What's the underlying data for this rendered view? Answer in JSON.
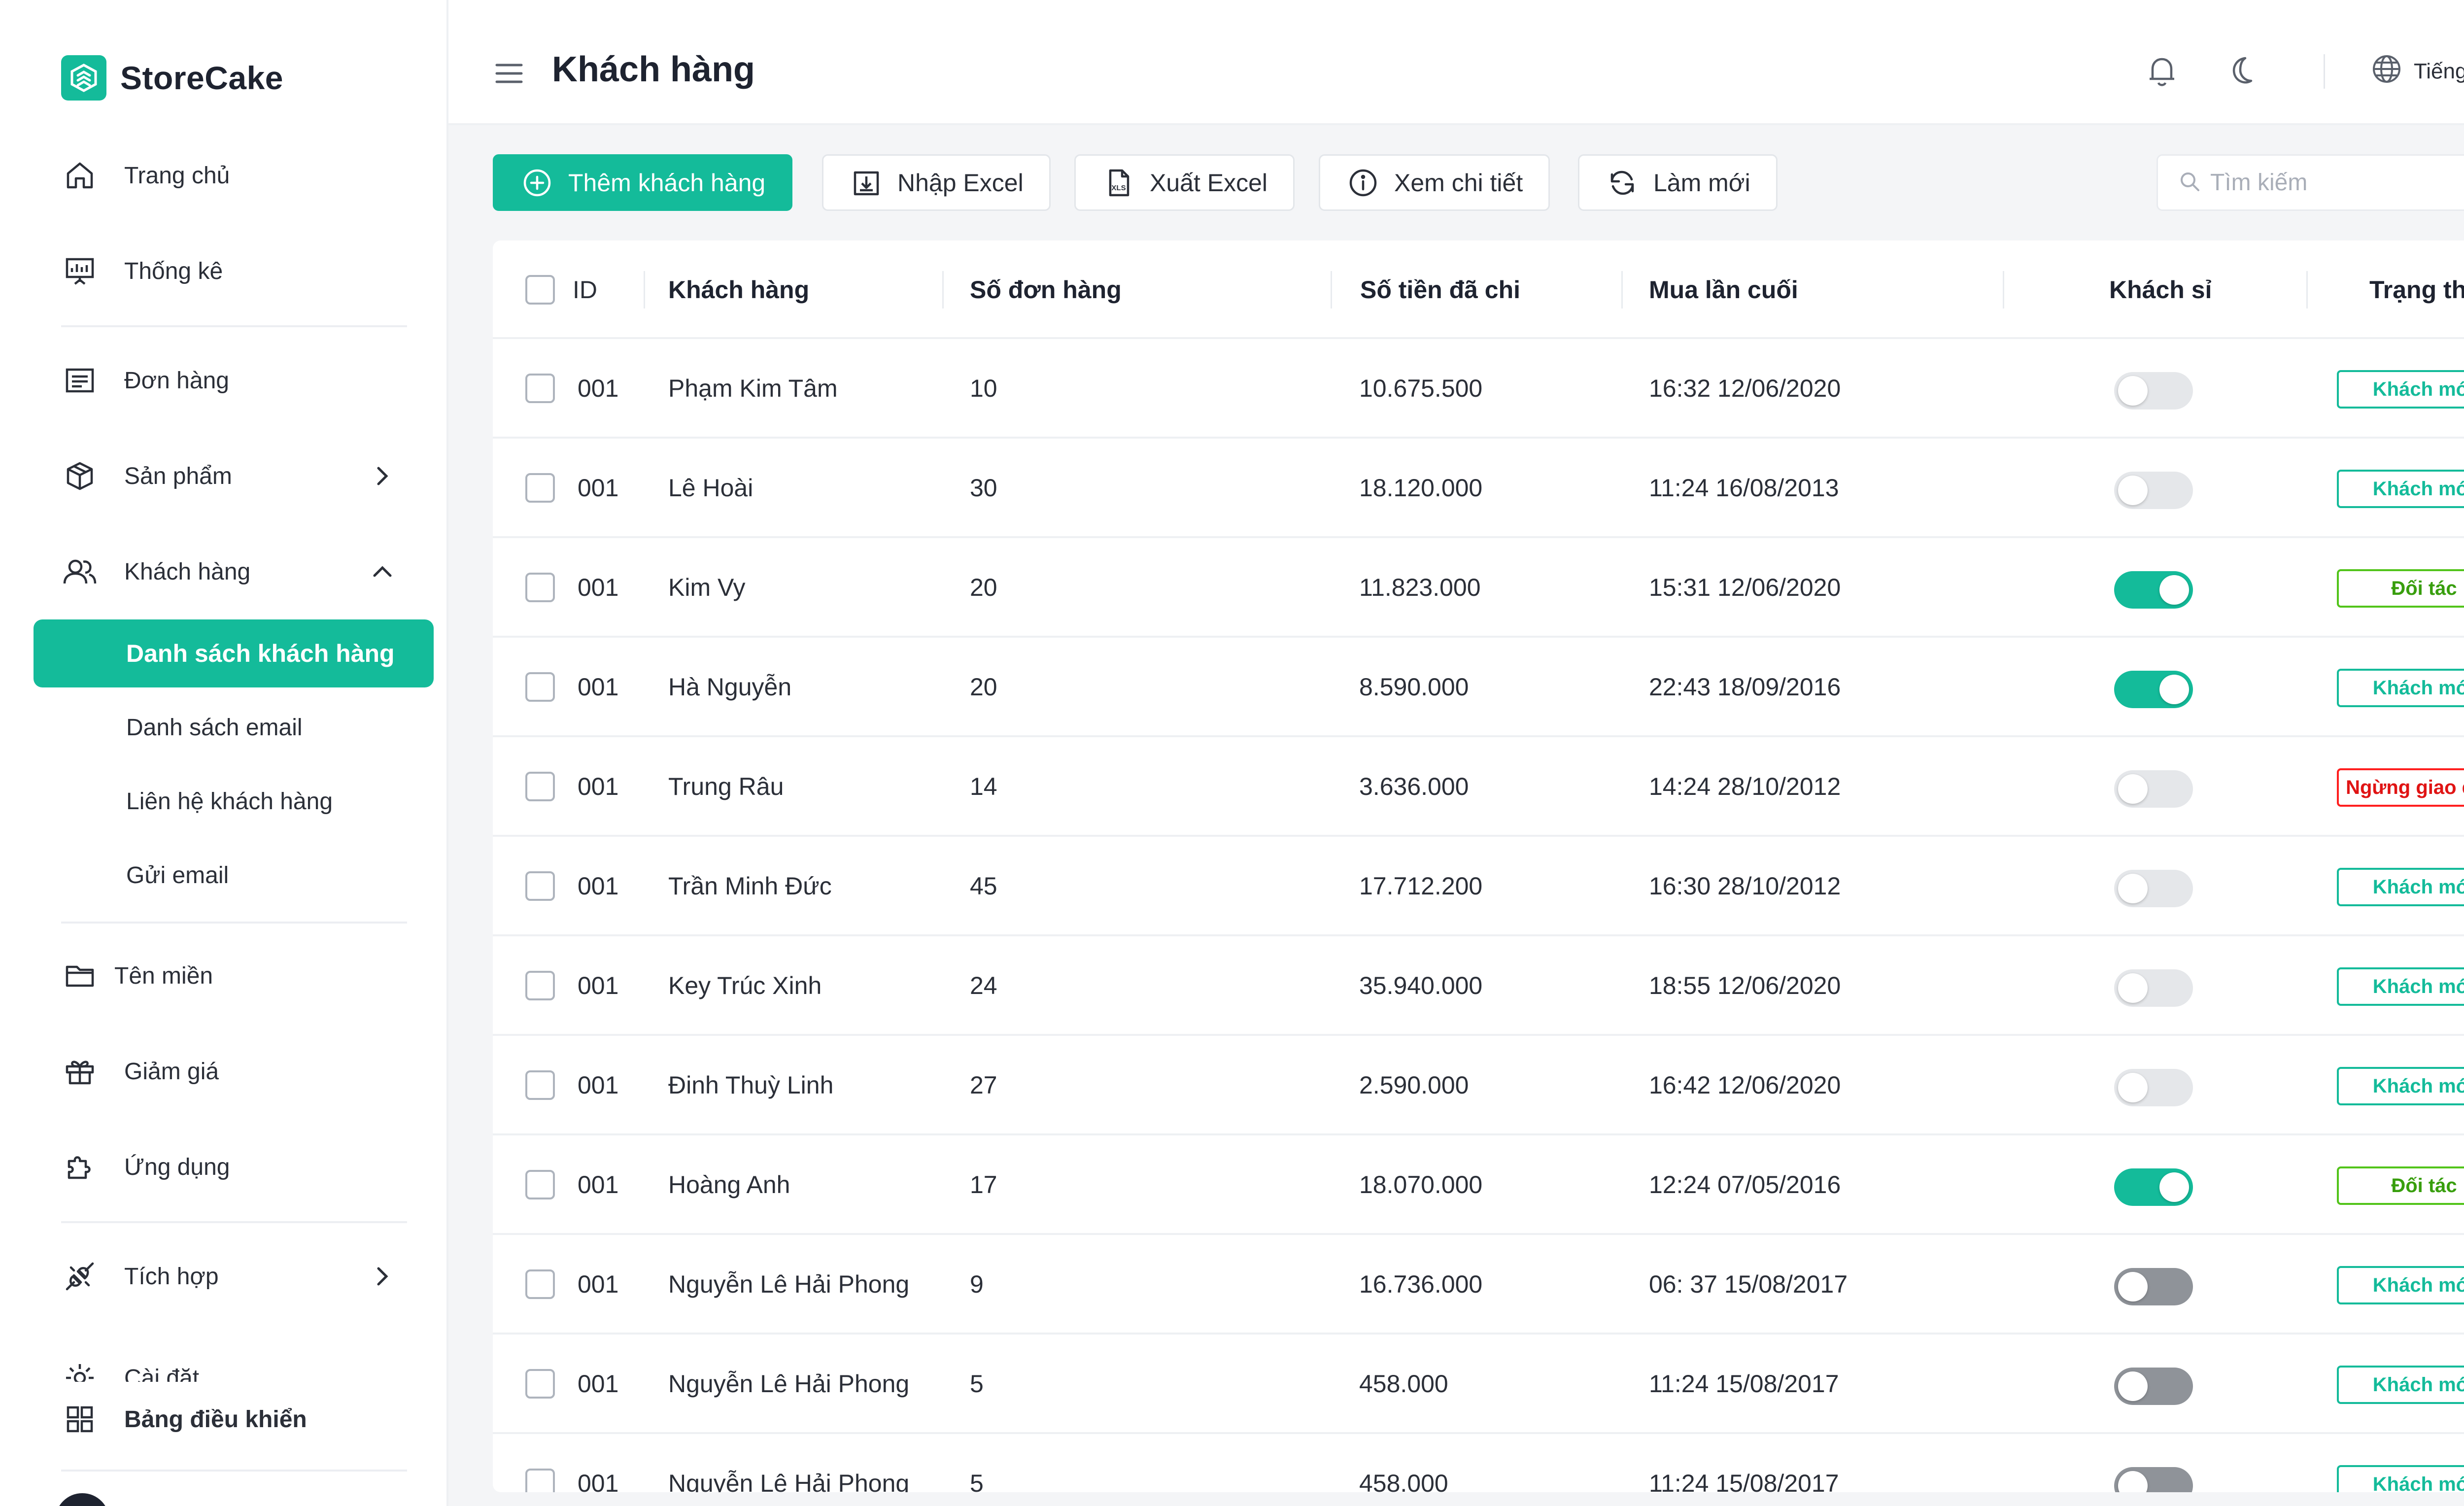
{
  "brand": {
    "name": "StoreCake",
    "color": "#14bb9a"
  },
  "sidebar": {
    "items": [
      {
        "label": "Trang chủ",
        "icon": "home-icon"
      },
      {
        "label": "Thống kê",
        "icon": "presentation-chart-icon"
      },
      {
        "label": "Đơn hàng",
        "icon": "receipt-icon"
      },
      {
        "label": "Sản phẩm",
        "icon": "box-icon"
      },
      {
        "label": "Khách hàng",
        "icon": "users-icon"
      },
      {
        "label": "Tên miền",
        "icon": "folder-icon"
      },
      {
        "label": "Giảm giá",
        "icon": "gift-icon"
      },
      {
        "label": "Ứng dụng",
        "icon": "puzzle-icon"
      },
      {
        "label": "Tích hợp",
        "icon": "plug-icon"
      },
      {
        "label": "Cài đặt",
        "icon": "settings-icon"
      }
    ],
    "customer_sub": [
      {
        "label": "Danh sách khách hàng",
        "active": true
      },
      {
        "label": "Danh sách email"
      },
      {
        "label": "Liên hệ khách hàng"
      },
      {
        "label": "Gửi email"
      }
    ],
    "dashboard_label": "Bảng điều khiển"
  },
  "header": {
    "title": "Khách hàng",
    "language": "Tiếng Việt"
  },
  "toolbar": {
    "add_customer": "Thêm khách hàng",
    "import_excel": "Nhập Excel",
    "export_excel": "Xuất Excel",
    "view_detail": "Xem chi tiết",
    "refresh": "Làm mới",
    "search_placeholder": "Tìm kiếm"
  },
  "table": {
    "columns": {
      "id": "ID",
      "customer": "Khách hàng",
      "orders": "Số đơn hàng",
      "spent": "Số tiền đã chi",
      "last_purchase": "Mua lần cuối",
      "wholesale": "Khách sỉ",
      "status": "Trạng thái"
    },
    "rows": [
      {
        "id": "001",
        "name": "Phạm Kim Tâm",
        "orders": "10",
        "spent": "10.675.500",
        "last": "16:32 12/06/2020",
        "wholesale": "off",
        "status": "Khách mới",
        "status_type": "new"
      },
      {
        "id": "001",
        "name": "Lê Hoài",
        "orders": "30",
        "spent": "18.120.000",
        "last": "11:24 16/08/2013",
        "wholesale": "off",
        "status": "Khách mới",
        "status_type": "new"
      },
      {
        "id": "001",
        "name": "Kim Vy",
        "orders": "20",
        "spent": "11.823.000",
        "last": "15:31 12/06/2020",
        "wholesale": "on",
        "status": "Đối tác",
        "status_type": "partner"
      },
      {
        "id": "001",
        "name": "Hà Nguyễn",
        "orders": "20",
        "spent": "8.590.000",
        "last": "22:43 18/09/2016",
        "wholesale": "on",
        "status": "Khách mới",
        "status_type": "new"
      },
      {
        "id": "001",
        "name": "Trung Râu",
        "orders": "14",
        "spent": "3.636.000",
        "last": "14:24 28/10/2012",
        "wholesale": "off",
        "status": "Ngừng giao dịch",
        "status_type": "stopped"
      },
      {
        "id": "001",
        "name": "Trần Minh Đức",
        "orders": "45",
        "spent": "17.712.200",
        "last": "16:30 28/10/2012",
        "wholesale": "off",
        "status": "Khách mới",
        "status_type": "new"
      },
      {
        "id": "001",
        "name": "Key Trúc Xinh",
        "orders": "24",
        "spent": "35.940.000",
        "last": "18:55 12/06/2020",
        "wholesale": "off",
        "status": "Khách mới",
        "status_type": "new"
      },
      {
        "id": "001",
        "name": "Đinh Thuỳ Linh",
        "orders": "27",
        "spent": "2.590.000",
        "last": "16:42 12/06/2020",
        "wholesale": "off",
        "status": "Khách mới",
        "status_type": "new"
      },
      {
        "id": "001",
        "name": "Hoàng Anh",
        "orders": "17",
        "spent": "18.070.000",
        "last": "12:24 07/05/2016",
        "wholesale": "on",
        "status": "Đối tác",
        "status_type": "partner"
      },
      {
        "id": "001",
        "name": "Nguyễn Lê Hải Phong",
        "orders": "9",
        "spent": "16.736.000",
        "last": "06: 37 15/08/2017",
        "wholesale": "disabled",
        "status": "Khách mới",
        "status_type": "new"
      },
      {
        "id": "001",
        "name": "Nguyễn Lê Hải Phong",
        "orders": "5",
        "spent": "458.000",
        "last": "11:24 15/08/2017",
        "wholesale": "disabled",
        "status": "Khách mới",
        "status_type": "new"
      },
      {
        "id": "001",
        "name": "Nguyễn Lê Hải Phong",
        "orders": "5",
        "spent": "458.000",
        "last": "11:24 15/08/2017",
        "wholesale": "disabled",
        "status": "Khách mới",
        "status_type": "new"
      }
    ]
  }
}
